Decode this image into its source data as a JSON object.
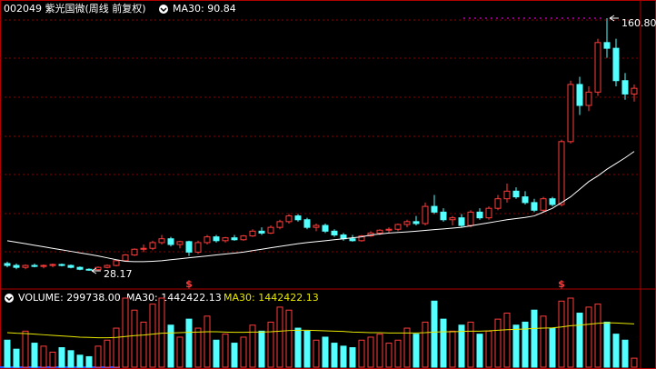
{
  "chart_data": {
    "type": "candlestick",
    "title": "002049 紫光国微(周线 前复权)",
    "ma_label": "MA30: 90.84",
    "up_color": "#ff3c3c",
    "down_color": "#54ffff",
    "open": [
      32,
      31,
      30,
      31,
      30.5,
      31,
      31.5,
      31,
      30,
      29,
      28.8,
      30,
      31,
      33.5,
      36.5,
      39.5,
      40,
      43,
      45,
      42,
      43.5,
      38,
      43,
      46,
      44,
      45.5,
      44.5,
      46.5,
      49,
      48,
      51,
      54,
      57,
      55,
      51,
      52,
      49,
      47,
      45,
      44,
      46.5,
      48,
      49.5,
      50,
      52.5,
      54,
      53,
      62,
      59,
      55,
      56,
      52,
      59,
      56,
      61,
      66,
      70,
      67,
      64,
      60,
      66,
      63,
      96,
      126,
      115,
      122,
      148,
      145,
      128,
      121
    ],
    "high": [
      33,
      32,
      31.5,
      32,
      31.5,
      32,
      32,
      31.5,
      30.5,
      29.5,
      30.5,
      31.5,
      34,
      37,
      40,
      42,
      44,
      47,
      46,
      44,
      44,
      44,
      47,
      47,
      46,
      47,
      47,
      50,
      51,
      52,
      55,
      58,
      58,
      56,
      53,
      53,
      50,
      48,
      47,
      47,
      49,
      50,
      51,
      53,
      55,
      57,
      64,
      68,
      61,
      57,
      58,
      60,
      61,
      62,
      68,
      74,
      72,
      70,
      66,
      67,
      67,
      97,
      128,
      130,
      125,
      150,
      160.8,
      150,
      132,
      126
    ],
    "low": [
      30,
      29,
      29,
      30,
      29.5,
      30,
      30.5,
      29.5,
      28.5,
      28.17,
      28.5,
      29.5,
      30.5,
      33,
      36,
      38,
      39,
      42,
      41,
      40,
      36,
      37,
      42,
      43,
      43,
      44,
      44,
      46,
      47,
      47.5,
      50,
      53,
      54,
      50,
      49,
      48,
      46,
      44,
      43.5,
      43.5,
      46,
      47,
      48,
      49,
      51,
      52,
      52,
      58,
      54,
      52,
      51,
      51,
      55,
      55,
      60,
      64,
      66,
      63,
      59,
      59,
      62,
      62,
      95,
      110,
      112,
      120,
      140,
      125,
      118,
      117
    ],
    "close": [
      31,
      30,
      31,
      30.5,
      31,
      31.5,
      31,
      30,
      29,
      28.8,
      30,
      31,
      33.5,
      36.5,
      39.5,
      40,
      43,
      45,
      42,
      43.5,
      38,
      43,
      46,
      44,
      45.5,
      44.5,
      46.5,
      49,
      48,
      51,
      54,
      57,
      55,
      51,
      52,
      49,
      47,
      45,
      44,
      46.5,
      48,
      49.5,
      50,
      52.5,
      54,
      53,
      62,
      59,
      55,
      56,
      52,
      59,
      56,
      61,
      66,
      70,
      67,
      64,
      60,
      66,
      63,
      96,
      126,
      115,
      122,
      148,
      145,
      128,
      121,
      124
    ],
    "ma30": {
      "color": "#ffffff",
      "values": [
        44,
        43.2,
        42.4,
        41.6,
        40.8,
        40,
        39.2,
        38.4,
        37.6,
        36.8,
        36,
        35,
        34,
        33.2,
        33,
        33,
        33.2,
        33.5,
        34,
        34.5,
        35,
        35.5,
        36,
        36.5,
        37,
        37.5,
        38,
        38.8,
        39.5,
        40.3,
        41,
        41.7,
        42.4,
        43,
        43.5,
        44,
        44.5,
        45,
        45.5,
        46,
        47,
        47.5,
        48,
        48.3,
        48.6,
        49,
        49.4,
        49.8,
        50.2,
        50.6,
        51,
        51.8,
        52.6,
        53.4,
        54.2,
        55,
        55.6,
        56.2,
        57,
        59,
        61,
        64,
        67,
        71,
        75,
        78,
        81.5,
        84.5,
        87.5,
        90.84
      ]
    },
    "annotations": [
      {
        "value": 160.8,
        "label": "160.80"
      },
      {
        "value": 28.17,
        "label": "28.17"
      }
    ],
    "signals": [
      {
        "at": 20,
        "label": "$"
      },
      {
        "at": 61,
        "label": "$"
      }
    ],
    "volume": {
      "title": "VOLUME: 299738.00",
      "ma_label": "MA30: 1442422.13",
      "ma_label_2": "MA30: 1442422.13",
      "values": [
        900000,
        600000,
        1200000,
        800000,
        700000,
        500000,
        650000,
        550000,
        400000,
        350000,
        700000,
        900000,
        1300000,
        2300000,
        1900000,
        1500000,
        2100000,
        2300000,
        1400000,
        1000000,
        1600000,
        1300000,
        1700000,
        900000,
        1100000,
        800000,
        1000000,
        1400000,
        1200000,
        1500000,
        2000000,
        1900000,
        1300000,
        1200000,
        900000,
        1000000,
        800000,
        700000,
        650000,
        900000,
        1000000,
        1100000,
        800000,
        900000,
        1300000,
        1100000,
        1500000,
        2200000,
        1600000,
        1200000,
        1400000,
        1500000,
        1100000,
        1200000,
        1600000,
        1800000,
        1400000,
        1500000,
        1900000,
        1700000,
        1300000,
        2200000,
        2300000,
        1800000,
        2000000,
        2100000,
        1500000,
        1100000,
        900000,
        299738
      ],
      "ma30": {
        "color": "#e8e800",
        "values": [
          1150000,
          1130000,
          1120000,
          1100000,
          1080000,
          1060000,
          1040000,
          1020000,
          1000000,
          990000,
          980000,
          980000,
          990000,
          1020000,
          1050000,
          1070000,
          1100000,
          1130000,
          1140000,
          1150000,
          1160000,
          1170000,
          1180000,
          1180000,
          1170000,
          1160000,
          1160000,
          1170000,
          1170000,
          1180000,
          1200000,
          1220000,
          1230000,
          1230000,
          1220000,
          1210000,
          1200000,
          1190000,
          1170000,
          1160000,
          1150000,
          1150000,
          1140000,
          1140000,
          1140000,
          1140000,
          1150000,
          1170000,
          1180000,
          1180000,
          1190000,
          1200000,
          1200000,
          1210000,
          1230000,
          1250000,
          1260000,
          1270000,
          1290000,
          1300000,
          1310000,
          1340000,
          1380000,
          1400000,
          1430000,
          1460000,
          1480000,
          1470000,
          1455000,
          1442422.13
        ]
      }
    }
  }
}
